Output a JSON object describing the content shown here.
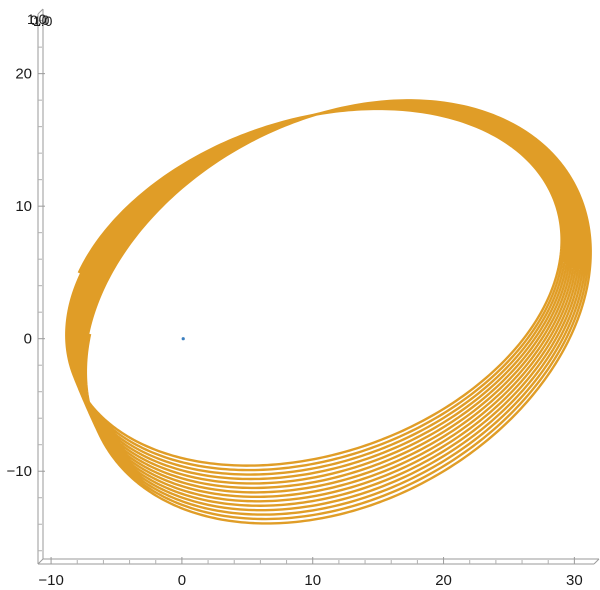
{
  "chart_data": {
    "type": "line",
    "title": "",
    "xlabel": "",
    "ylabel": "",
    "xlim": [
      -11.0,
      31.5
    ],
    "ylim": [
      -17.0,
      24.5
    ],
    "x_ticks": [
      -10,
      0,
      10,
      20,
      30
    ],
    "y_ticks": [
      -10,
      0,
      10,
      20
    ],
    "x_tick_labels": [
      "−10",
      "0",
      "10",
      "20",
      "30"
    ],
    "y_tick_labels": [
      "−10",
      "0",
      "10",
      "20"
    ],
    "grid": false,
    "corner_labels": [
      "1.0",
      "0.0",
      "1.0"
    ],
    "series": [
      {
        "color": "#e09d27",
        "kind": "precessing-ellipse",
        "loops": 14,
        "start_ellipse": {
          "center": [
            12.0,
            2.0
          ],
          "semi_major": 20.5,
          "semi_minor": 14.5,
          "angle_deg": 28
        },
        "end_ellipse": {
          "center": [
            10.0,
            4.0
          ],
          "semi_major": 19.5,
          "semi_minor": 12.5,
          "angle_deg": 18
        }
      },
      {
        "color": "#3b7fbf",
        "kind": "point",
        "x": [
          0.1
        ],
        "y": [
          0.0
        ]
      }
    ]
  }
}
